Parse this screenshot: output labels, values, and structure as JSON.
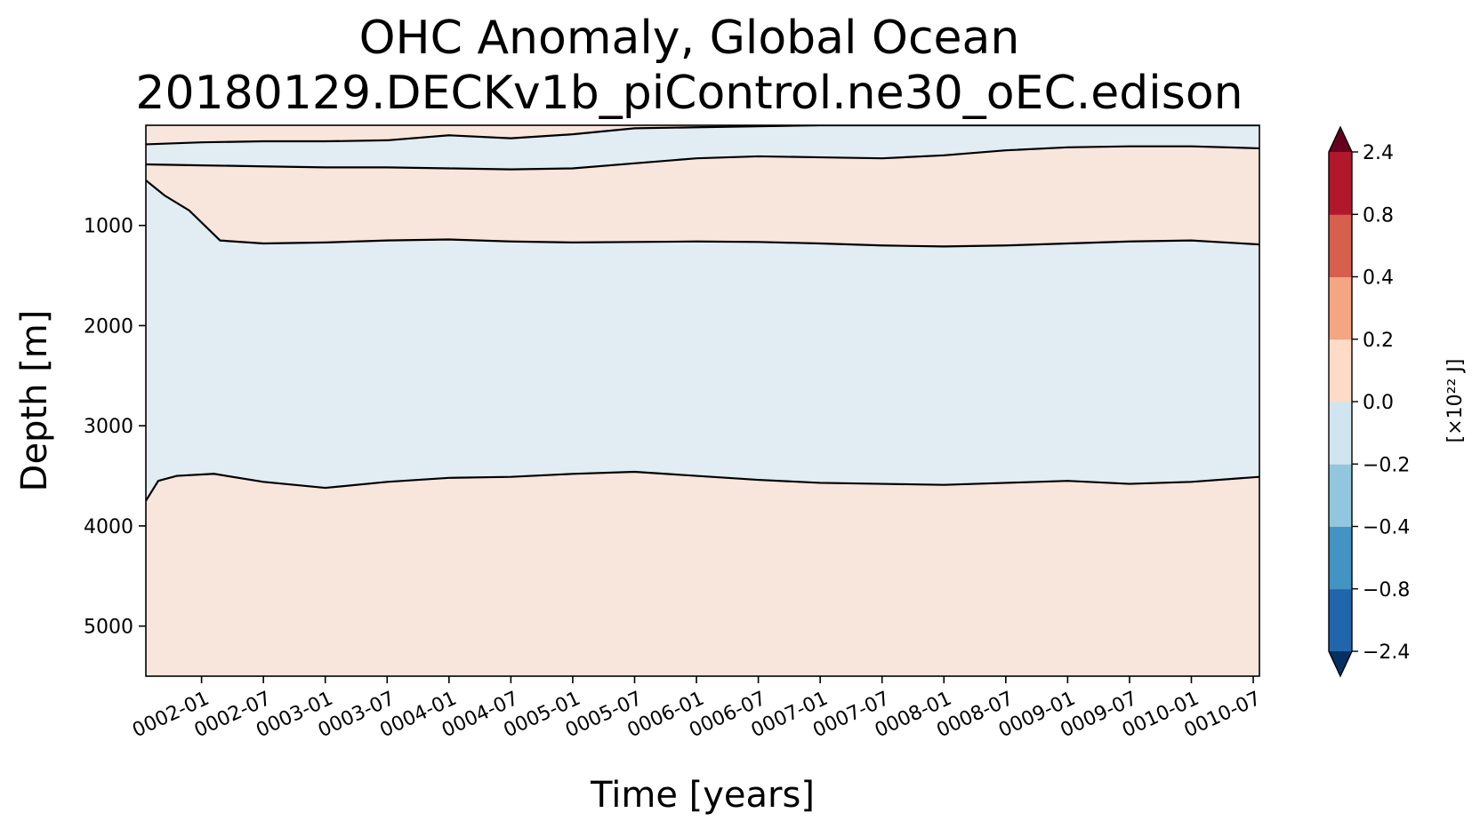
{
  "chart_data": {
    "type": "heatmap",
    "subtype": "filled-contour",
    "title": "OHC Anomaly, Global Ocean",
    "subtitle": "20180129.DECKv1b_piControl.ne30_oEC.edison",
    "xlabel": "Time [years]",
    "ylabel": "Depth [m]",
    "x_ticks": [
      "0002-01",
      "0002-07",
      "0003-01",
      "0003-07",
      "0004-01",
      "0004-07",
      "0005-01",
      "0005-07",
      "0006-01",
      "0006-07",
      "0007-01",
      "0007-07",
      "0008-01",
      "0008-07",
      "0009-01",
      "0009-07",
      "0010-01",
      "0010-07"
    ],
    "xlim_years": [
      1.55,
      10.55
    ],
    "y_ticks": [
      1000,
      2000,
      3000,
      4000,
      5000
    ],
    "ylim": [
      5500,
      0
    ],
    "y_inverted": true,
    "grid": false,
    "colorbar": {
      "label": "[×10²² J]",
      "levels": [
        -2.4,
        -0.8,
        -0.4,
        -0.2,
        0.0,
        0.2,
        0.4,
        0.8,
        2.4
      ],
      "tick_labels": [
        "−2.4",
        "−0.8",
        "−0.4",
        "−0.2",
        "0.0",
        "0.2",
        "0.4",
        "0.8",
        "2.4"
      ],
      "colors": [
        "#2166ac",
        "#4393c3",
        "#92c5de",
        "#d1e5f0",
        "#fddbc7",
        "#f4a582",
        "#d6604d",
        "#b2182b"
      ],
      "under_color": "#053061",
      "over_color": "#67001f",
      "extend": "both"
    },
    "regions": [
      {
        "label": "0.0 to 0.2",
        "color": "#f8e5dc",
        "description": "background (upper ocean 0–~1100 m and deep ocean below ~3500 m)"
      },
      {
        "label": "-0.2 to 0.0",
        "color": "#e1ecf3",
        "top_depth": [
          [
            1.55,
            550
          ],
          [
            1.7,
            700
          ],
          [
            1.9,
            850
          ],
          [
            2.15,
            1150
          ],
          [
            2.5,
            1180
          ],
          [
            3,
            1170
          ],
          [
            3.5,
            1150
          ],
          [
            4,
            1140
          ],
          [
            4.5,
            1160
          ],
          [
            5,
            1170
          ],
          [
            5.5,
            1165
          ],
          [
            6,
            1160
          ],
          [
            6.5,
            1165
          ],
          [
            7,
            1180
          ],
          [
            7.5,
            1200
          ],
          [
            8,
            1210
          ],
          [
            8.5,
            1200
          ],
          [
            9,
            1180
          ],
          [
            9.5,
            1160
          ],
          [
            10,
            1150
          ],
          [
            10.55,
            1190
          ]
        ],
        "bottom_depth": [
          [
            1.55,
            3750
          ],
          [
            1.65,
            3550
          ],
          [
            1.8,
            3500
          ],
          [
            2.1,
            3480
          ],
          [
            2.5,
            3560
          ],
          [
            3,
            3620
          ],
          [
            3.5,
            3560
          ],
          [
            4,
            3520
          ],
          [
            4.5,
            3510
          ],
          [
            5,
            3480
          ],
          [
            5.5,
            3460
          ],
          [
            6,
            3500
          ],
          [
            6.5,
            3540
          ],
          [
            7,
            3570
          ],
          [
            7.5,
            3580
          ],
          [
            8,
            3590
          ],
          [
            8.5,
            3570
          ],
          [
            9,
            3550
          ],
          [
            9.5,
            3580
          ],
          [
            10,
            3560
          ],
          [
            10.55,
            3510
          ]
        ]
      },
      {
        "label": "-0.2 to 0.0",
        "color": "#e1ecf3",
        "description": "near-surface cold band",
        "top_depth": [
          [
            1.55,
            190
          ],
          [
            2,
            170
          ],
          [
            2.5,
            160
          ],
          [
            3,
            160
          ],
          [
            3.5,
            150
          ],
          [
            4,
            100
          ],
          [
            4.5,
            130
          ],
          [
            5,
            90
          ],
          [
            5.5,
            30
          ],
          [
            6,
            20
          ],
          [
            7,
            0
          ],
          [
            8,
            0
          ],
          [
            9,
            0
          ],
          [
            10,
            0
          ],
          [
            10.55,
            0
          ]
        ],
        "bottom_depth": [
          [
            1.55,
            390
          ],
          [
            2,
            400
          ],
          [
            2.5,
            410
          ],
          [
            3,
            420
          ],
          [
            3.5,
            420
          ],
          [
            4,
            430
          ],
          [
            4.5,
            440
          ],
          [
            5,
            430
          ],
          [
            5.5,
            380
          ],
          [
            6,
            330
          ],
          [
            6.5,
            310
          ],
          [
            7,
            320
          ],
          [
            7.5,
            330
          ],
          [
            8,
            300
          ],
          [
            8.5,
            250
          ],
          [
            9,
            220
          ],
          [
            9.5,
            210
          ],
          [
            10,
            210
          ],
          [
            10.55,
            230
          ]
        ]
      }
    ]
  }
}
